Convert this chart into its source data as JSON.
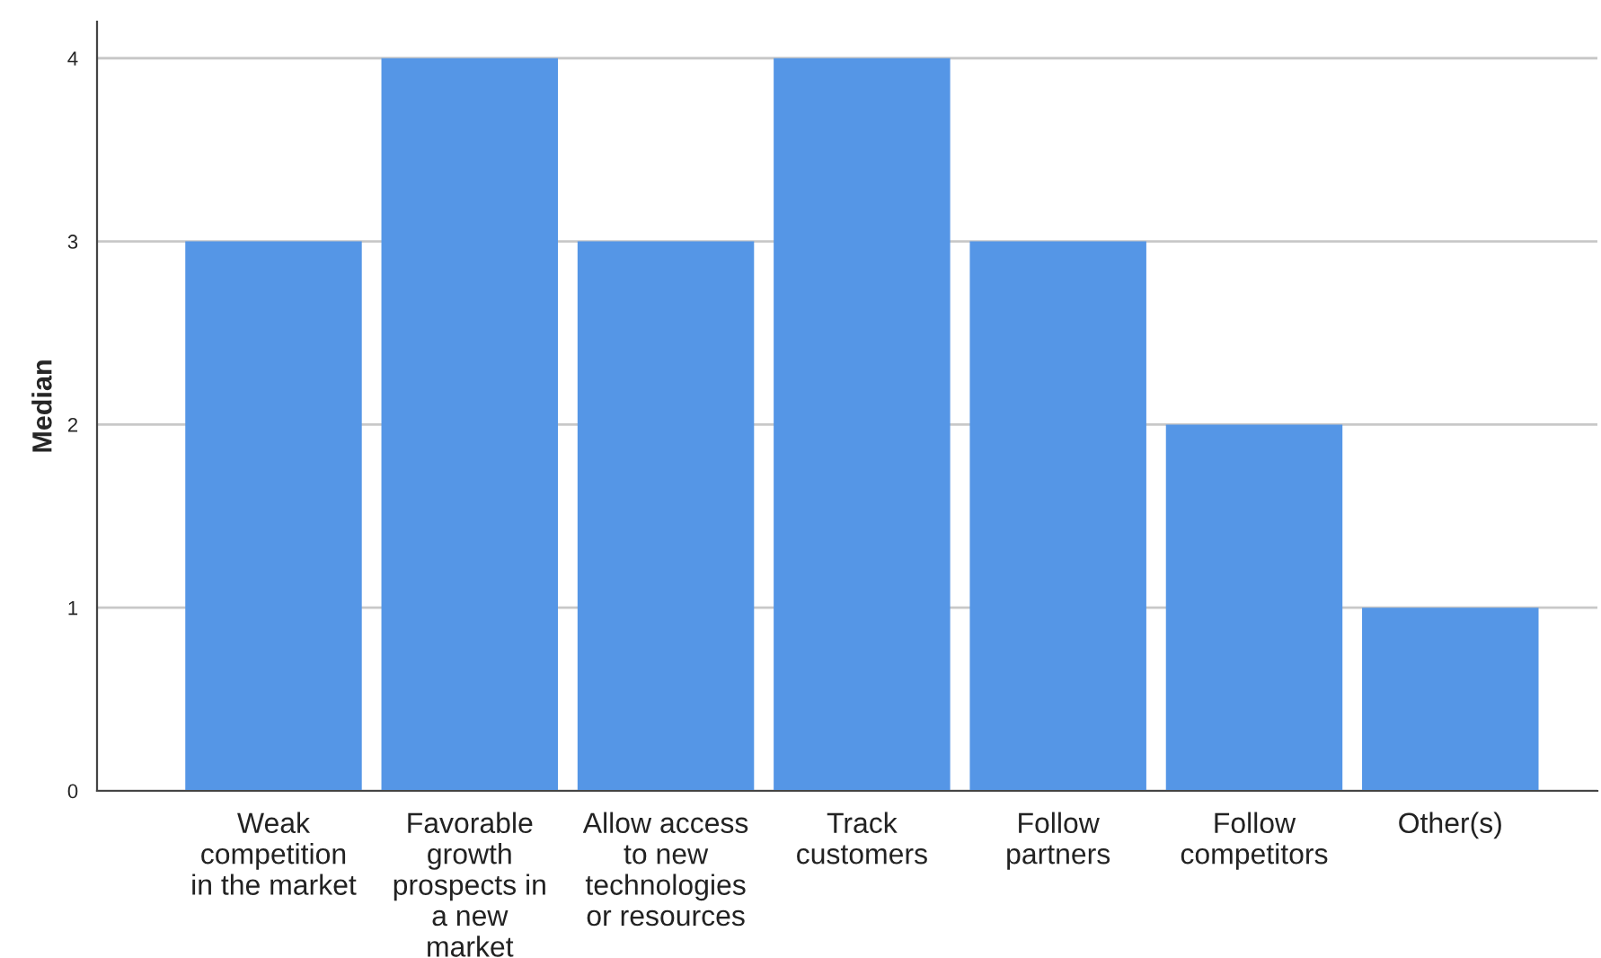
{
  "chart_data": {
    "type": "bar",
    "ylabel": "Median",
    "categories": [
      "Weak\ncompetition\nin the market",
      "Favorable\ngrowth\nprospects in\na new\nmarket",
      "Allow access\nto new\ntechnologies\nor resources",
      "Track\ncustomers",
      "Follow\npartners",
      "Follow\ncompetitors",
      "Other(s)"
    ],
    "values": [
      3,
      4,
      3,
      4,
      3,
      2,
      1
    ],
    "color": "#5596e6",
    "ylim": [
      0,
      4.2
    ],
    "yticks": [
      0,
      1,
      2,
      3,
      4
    ],
    "grid": "y"
  }
}
